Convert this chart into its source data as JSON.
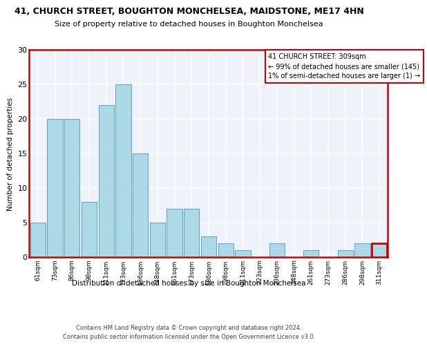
{
  "title1": "41, CHURCH STREET, BOUGHTON MONCHELSEA, MAIDSTONE, ME17 4HN",
  "title2": "Size of property relative to detached houses in Boughton Monchelsea",
  "xlabel": "Distribution of detached houses by size in Boughton Monchelsea",
  "ylabel": "Number of detached properties",
  "categories": [
    "61sqm",
    "73sqm",
    "86sqm",
    "98sqm",
    "111sqm",
    "123sqm",
    "136sqm",
    "148sqm",
    "161sqm",
    "173sqm",
    "186sqm",
    "198sqm",
    "211sqm",
    "223sqm",
    "236sqm",
    "248sqm",
    "261sqm",
    "273sqm",
    "286sqm",
    "298sqm",
    "311sqm"
  ],
  "values": [
    5,
    20,
    20,
    8,
    22,
    25,
    15,
    5,
    7,
    7,
    3,
    2,
    1,
    0,
    2,
    0,
    1,
    0,
    1,
    2,
    2
  ],
  "bar_color": "#add8e6",
  "bar_edge_color": "#5aa0c8",
  "highlight_bar_index": 20,
  "highlight_color": "#cc0000",
  "annotation_text": "41 CHURCH STREET: 309sqm\n← 99% of detached houses are smaller (145)\n1% of semi-detached houses are larger (1) →",
  "ylim": [
    0,
    30
  ],
  "yticks": [
    0,
    5,
    10,
    15,
    20,
    25,
    30
  ],
  "footnote1": "Contains HM Land Registry data © Crown copyright and database right 2024.",
  "footnote2": "Contains public sector information licensed under the Open Government Licence v3.0.",
  "background_color": "#eef2fb",
  "grid_color": "#ffffff",
  "fig_bg_color": "#ffffff"
}
